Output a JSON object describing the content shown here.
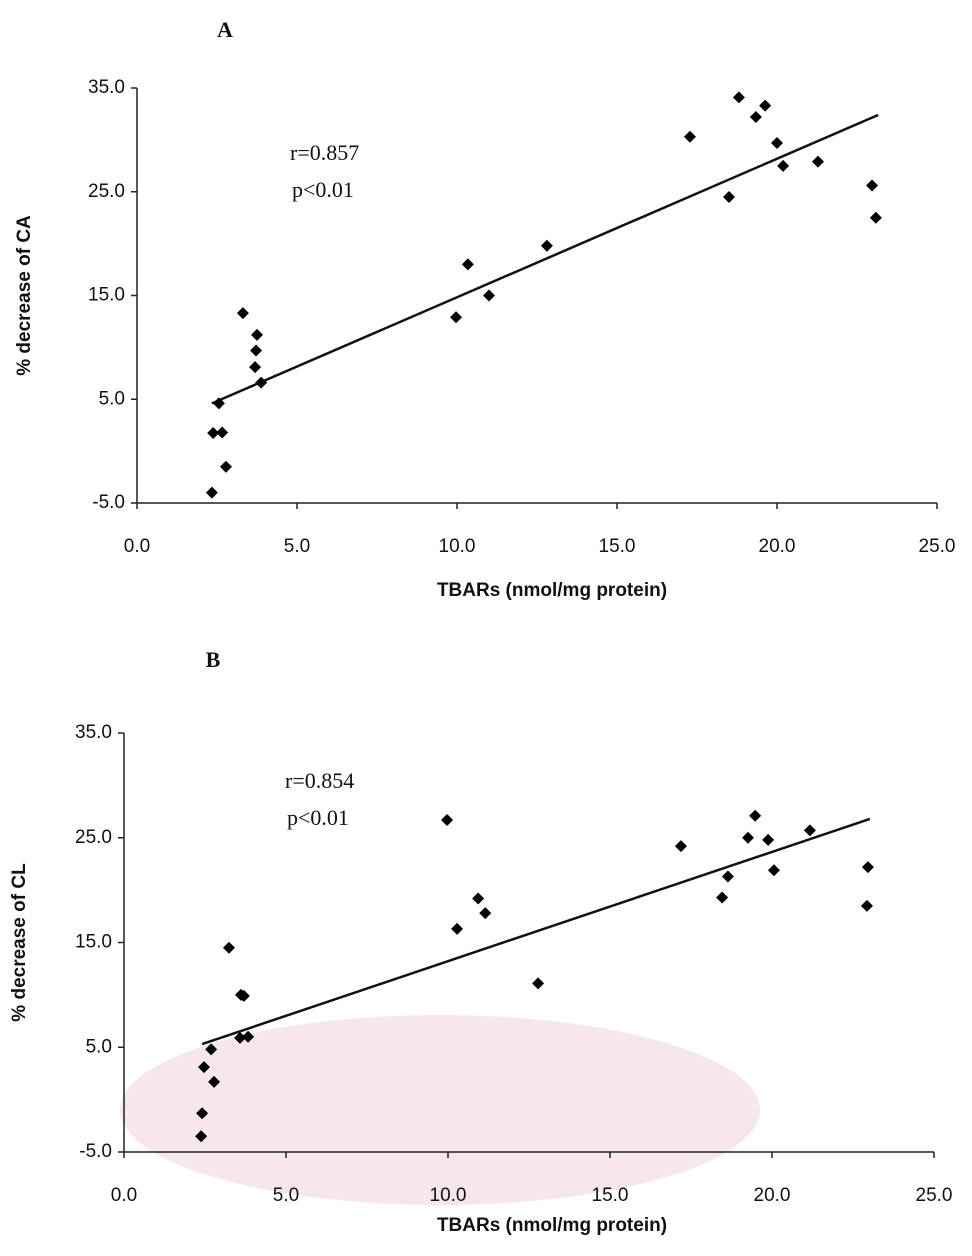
{
  "chart_data": [
    {
      "type": "scatter",
      "title": "A",
      "xlabel": "TBARs (nmol/mg protein)",
      "ylabel": "% decrease of CA",
      "annotations": [
        "r=0.857",
        "p<0.01"
      ],
      "color": "#000000",
      "x": [
        2.34,
        2.38,
        2.66,
        2.78,
        2.56,
        3.31,
        3.75,
        3.72,
        3.69,
        3.88,
        9.97,
        10.34,
        11.0,
        12.81,
        17.28,
        18.81,
        18.5,
        19.34,
        19.63,
        20.0,
        20.19,
        21.28,
        22.97,
        23.09
      ],
      "y": [
        -4.0,
        1.75,
        1.8,
        -1.5,
        4.6,
        13.3,
        11.2,
        9.7,
        8.1,
        6.6,
        12.9,
        18.0,
        15.0,
        19.8,
        30.3,
        34.1,
        24.5,
        32.2,
        33.3,
        29.7,
        27.5,
        27.9,
        25.6,
        22.5
      ],
      "trendline": {
        "x": [
          2.34,
          23.16
        ],
        "y": [
          4.6,
          32.4
        ]
      },
      "xlim": [
        0,
        25
      ],
      "ylim": [
        -5,
        35
      ],
      "xticks": [
        {
          "value": 0,
          "label": "0.0"
        },
        {
          "value": 5,
          "label": "5.0"
        },
        {
          "value": 10,
          "label": "10.0"
        },
        {
          "value": 15,
          "label": "15.0"
        },
        {
          "value": 20,
          "label": "20.0"
        },
        {
          "value": 25,
          "label": "25.0"
        }
      ],
      "yticks": [
        {
          "value": -5,
          "label": "-5.0"
        },
        {
          "value": 5,
          "label": "5.0"
        },
        {
          "value": 15,
          "label": "15.0"
        },
        {
          "value": 25,
          "label": "25.0"
        },
        {
          "value": 35,
          "label": "35.0"
        }
      ]
    },
    {
      "type": "scatter",
      "title": "B",
      "xlabel": "TBARs (nmol/mg protein)",
      "ylabel": "% decrease of CL",
      "annotations": [
        "r=0.854",
        "p<0.01"
      ],
      "color": "#000000",
      "x": [
        2.38,
        2.41,
        2.47,
        2.69,
        2.78,
        3.24,
        3.61,
        3.7,
        3.58,
        3.83,
        9.97,
        10.28,
        10.93,
        11.15,
        12.78,
        17.19,
        18.46,
        18.64,
        19.26,
        19.48,
        19.88,
        20.06,
        21.17,
        22.93,
        22.96
      ],
      "y": [
        -3.5,
        -1.3,
        3.1,
        4.8,
        1.7,
        14.5,
        10.0,
        9.9,
        5.9,
        6.0,
        26.7,
        16.3,
        19.2,
        17.8,
        11.1,
        24.2,
        19.3,
        21.3,
        25.0,
        27.1,
        24.8,
        21.9,
        25.7,
        18.5,
        22.2
      ],
      "trendline": {
        "x": [
          2.41,
          23.02
        ],
        "y": [
          5.3,
          26.8
        ]
      },
      "xlim": [
        0,
        25
      ],
      "ylim": [
        -5,
        35
      ],
      "xticks": [
        {
          "value": 0,
          "label": "0.0"
        },
        {
          "value": 5,
          "label": "5.0"
        },
        {
          "value": 10,
          "label": "10.0"
        },
        {
          "value": 15,
          "label": "15.0"
        },
        {
          "value": 20,
          "label": "20.0"
        },
        {
          "value": 25,
          "label": "25.0"
        }
      ],
      "yticks": [
        {
          "value": -5,
          "label": "-5.0"
        },
        {
          "value": 5,
          "label": "5.0"
        },
        {
          "value": 15,
          "label": "15.0"
        },
        {
          "value": 25,
          "label": "25.0"
        },
        {
          "value": 35,
          "label": "35.0"
        }
      ]
    }
  ]
}
